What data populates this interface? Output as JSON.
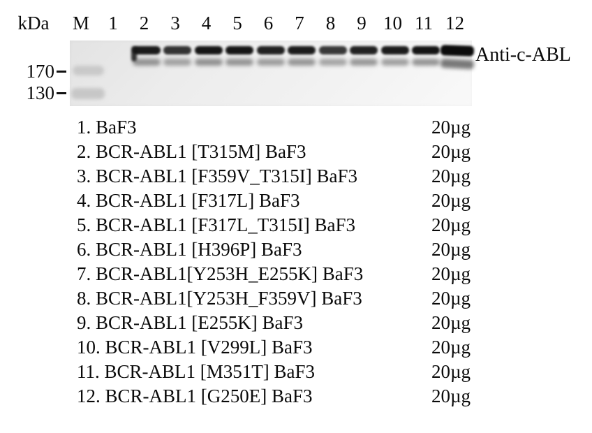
{
  "header": {
    "unit_label": "kDa",
    "marker_lane_label": "M",
    "lane_numbers": [
      "1",
      "2",
      "3",
      "4",
      "5",
      "6",
      "7",
      "8",
      "9",
      "10",
      "11",
      "12"
    ]
  },
  "blot": {
    "antibody_label": "Anti-c-ABL",
    "mw_markers": [
      {
        "value": "170"
      },
      {
        "value": "130"
      }
    ],
    "bands": [
      {
        "lane": 2,
        "upper": 0.93,
        "lower": 0.5,
        "smudge": true
      },
      {
        "lane": 3,
        "upper": 0.82,
        "lower": 0.42
      },
      {
        "lane": 4,
        "upper": 0.95,
        "lower": 0.52
      },
      {
        "lane": 5,
        "upper": 0.95,
        "lower": 0.5
      },
      {
        "lane": 6,
        "upper": 0.9,
        "lower": 0.46
      },
      {
        "lane": 7,
        "upper": 0.92,
        "lower": 0.5
      },
      {
        "lane": 8,
        "upper": 0.8,
        "lower": 0.42
      },
      {
        "lane": 9,
        "upper": 0.9,
        "lower": 0.5
      },
      {
        "lane": 10,
        "upper": 0.93,
        "lower": 0.46
      },
      {
        "lane": 11,
        "upper": 0.96,
        "lower": 0.52
      },
      {
        "lane": 12,
        "upper": 1.0,
        "lower": 0.68,
        "wide": true
      }
    ]
  },
  "legend": {
    "rows": [
      {
        "num": "1",
        "sample": "BaF3",
        "amount": "20µg"
      },
      {
        "num": "2",
        "sample": "BCR-ABL1 [T315M] BaF3",
        "amount": "20µg"
      },
      {
        "num": "3",
        "sample": "BCR-ABL1 [F359V_T315I] BaF3",
        "amount": "20µg"
      },
      {
        "num": "4",
        "sample": "BCR-ABL1 [F317L] BaF3",
        "amount": "20µg"
      },
      {
        "num": "5",
        "sample": "BCR-ABL1 [F317L_T315I] BaF3",
        "amount": "20µg"
      },
      {
        "num": "6",
        "sample": "BCR-ABL1 [H396P] BaF3",
        "amount": "20µg"
      },
      {
        "num": "7",
        "sample": "BCR-ABL1[Y253H_E255K] BaF3",
        "amount": "20µg"
      },
      {
        "num": "8",
        "sample": "BCR-ABL1[Y253H_F359V] BaF3",
        "amount": "20µg"
      },
      {
        "num": "9",
        "sample": "BCR-ABL1 [E255K] BaF3",
        "amount": "20µg"
      },
      {
        "num": "10",
        "sample": "BCR-ABL1 [V299L] BaF3",
        "amount": "20µg"
      },
      {
        "num": "11",
        "sample": "BCR-ABL1 [M351T] BaF3",
        "amount": "20µg"
      },
      {
        "num": "12",
        "sample": "BCR-ABL1 [G250E] BaF3",
        "amount": "20µg"
      }
    ]
  }
}
